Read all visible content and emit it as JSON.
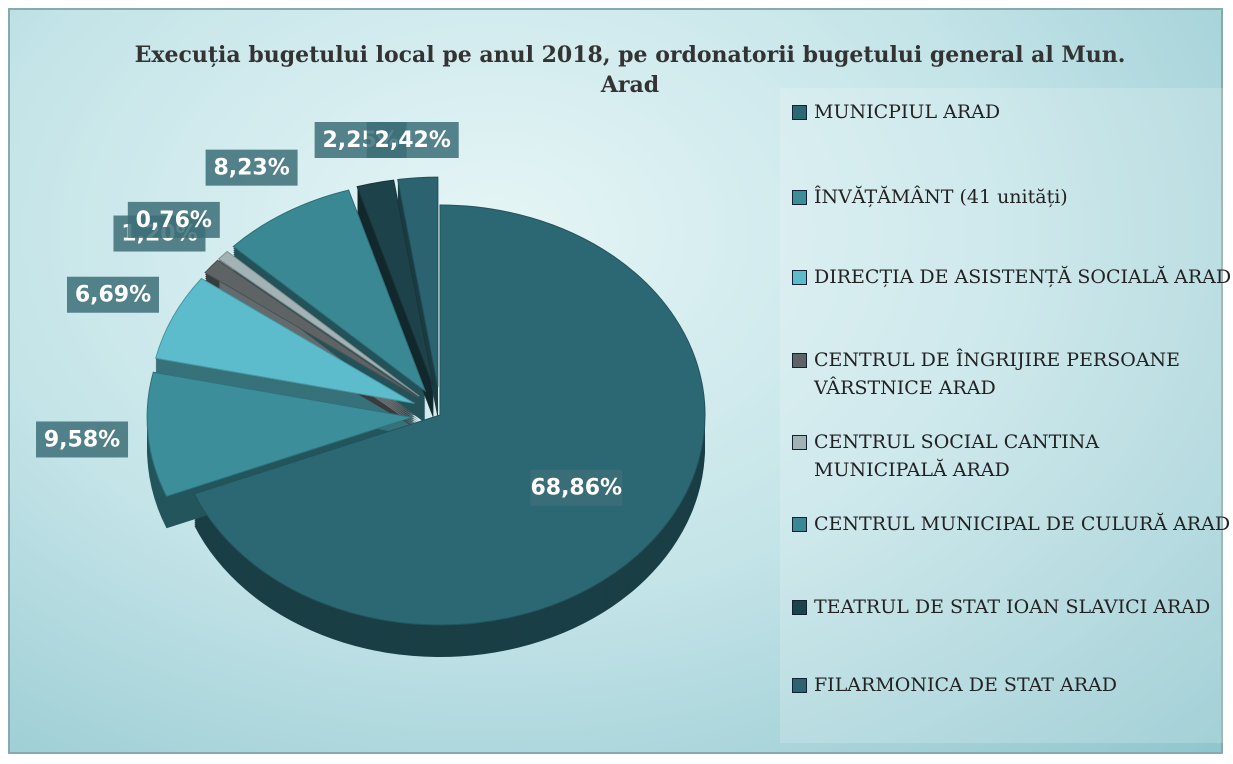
{
  "chart_data": {
    "type": "pie",
    "title": "Execuția bugetului local pe anul 2018, pe ordonatorii bugetului general al Mun. Arad",
    "categories": [
      "MUNICPIUL ARAD",
      "ÎNVĂȚĂMÂNT (41 unități)",
      "DIRECȚIA DE ASISTENȚĂ SOCIALĂ ARAD",
      "CENTRUL DE ÎNGRIJIRE PERSOANE VÂRSTNICE ARAD",
      "CENTRUL SOCIAL CANTINA MUNICIPALĂ ARAD",
      "CENTRUL MUNICIPAL DE CULURĂ ARAD",
      "TEATRUL DE STAT IOAN SLAVICI ARAD",
      "FILARMONICA DE STAT ARAD"
    ],
    "values": [
      68.86,
      9.58,
      6.69,
      1.2,
      0.76,
      8.23,
      2.25,
      2.42
    ],
    "value_labels": [
      "68,86%",
      "9,58%",
      "6,69%",
      "1,20%",
      "0,76%",
      "8,23%",
      "2,25%",
      "2,42%"
    ],
    "colors": [
      "#2c6873",
      "#3b8e9a",
      "#5cbccb",
      "#5e6466",
      "#a3b3b5",
      "#3a8894",
      "#1e4249",
      "#2b6470"
    ],
    "legend": "right"
  }
}
